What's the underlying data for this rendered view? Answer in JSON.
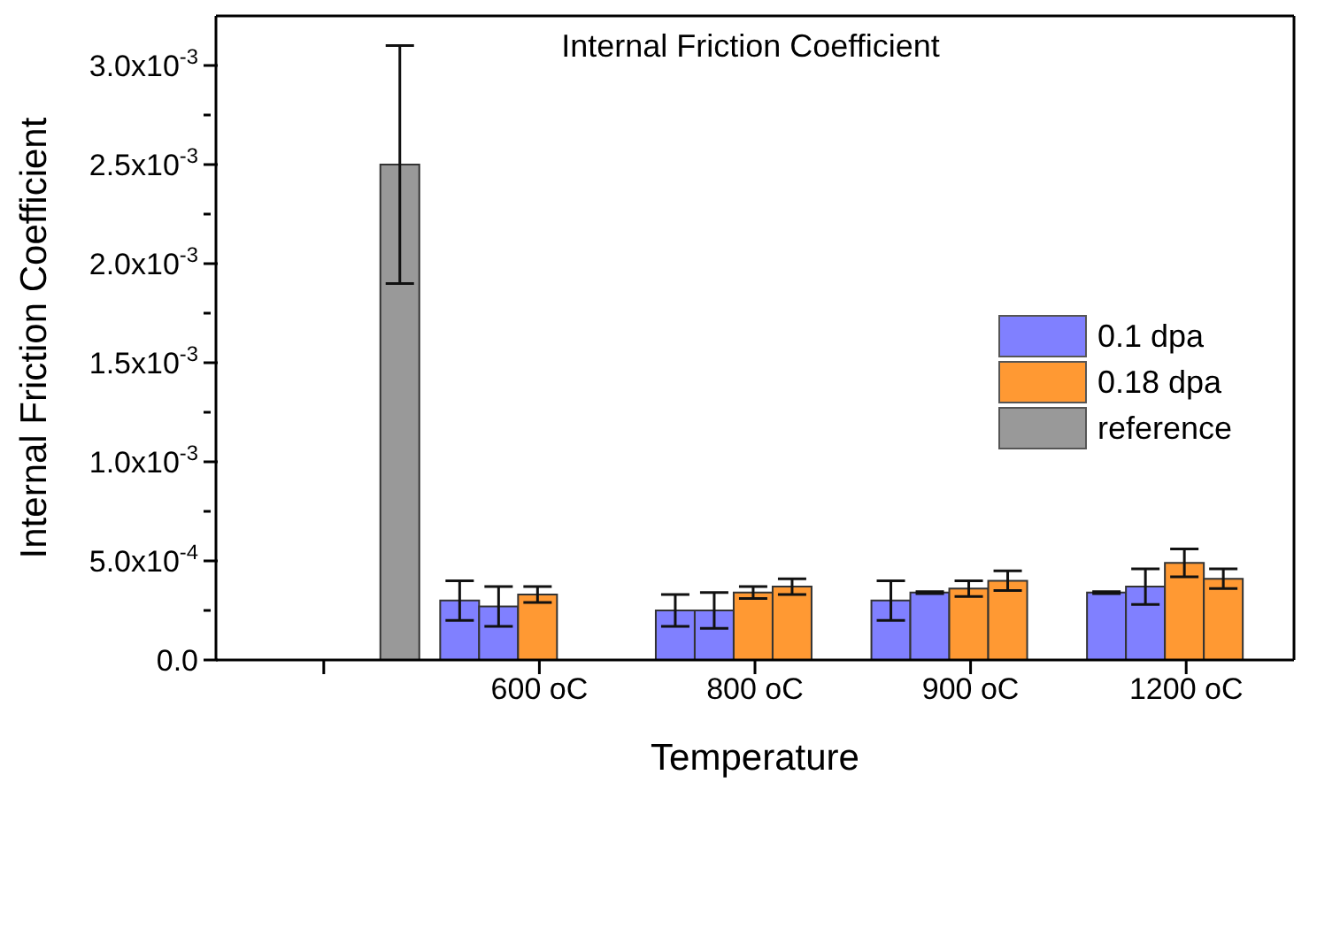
{
  "chart_data": {
    "type": "bar",
    "title": "Internal Friction Coefficient",
    "xlabel": "Temperature",
    "ylabel": "Internal Friction Coefficient",
    "categories": [
      null,
      "600 oC",
      "800 oC",
      "900 oC",
      "1200 oC"
    ],
    "series": [
      {
        "name": "0.1 dpa",
        "color": "#8080ff",
        "values": [
          null,
          0.0003,
          0.00025,
          0.0003,
          0.00034
        ],
        "errors": [
          null,
          0.0001,
          8e-05,
          0.0001,
          5e-06
        ]
      },
      {
        "color": "#8080ff",
        "values": [
          null,
          0.00027,
          0.00025,
          0.00034,
          0.00037
        ],
        "errors": [
          null,
          0.0001,
          9e-05,
          5e-06,
          9e-05
        ]
      },
      {
        "name": "0.18 dpa",
        "color": "#ff9933",
        "values": [
          null,
          0.00033,
          0.00034,
          0.00036,
          0.00049
        ],
        "errors": [
          null,
          4e-05,
          3e-05,
          4e-05,
          7e-05
        ]
      },
      {
        "color": "#ff9933",
        "values": [
          null,
          null,
          0.00037,
          0.0004,
          0.00041
        ],
        "errors": [
          null,
          null,
          4e-05,
          5e-05,
          5e-05
        ]
      },
      {
        "name": "reference",
        "color": "#999999",
        "values": [
          0.0025,
          null,
          null,
          null,
          null
        ],
        "errors": [
          0.0006,
          null,
          null,
          null,
          null
        ]
      }
    ],
    "ylim": [
      0,
      0.00325
    ],
    "yticks": [
      {
        "value": 0,
        "label": "0.0"
      },
      {
        "value": 0.00025,
        "label": null
      },
      {
        "value": 0.0005,
        "label": "5.0x10$^{-4}$"
      },
      {
        "value": 0.00075,
        "label": null
      },
      {
        "value": 0.001,
        "label": "1.0x10$^{-3}$"
      },
      {
        "value": 0.00125,
        "label": null
      },
      {
        "value": 0.0015,
        "label": "1.5x10$^{-3}$"
      },
      {
        "value": 0.00175,
        "label": null
      },
      {
        "value": 0.002,
        "label": "2.0x10$^{-3}$"
      },
      {
        "value": 0.00225,
        "label": null
      },
      {
        "value": 0.0025,
        "label": "2.5x10$^{-3}$"
      },
      {
        "value": 0.00275,
        "label": null
      },
      {
        "value": 0.003,
        "label": "3.0x10$^{-3}$"
      }
    ],
    "legend": "right"
  }
}
